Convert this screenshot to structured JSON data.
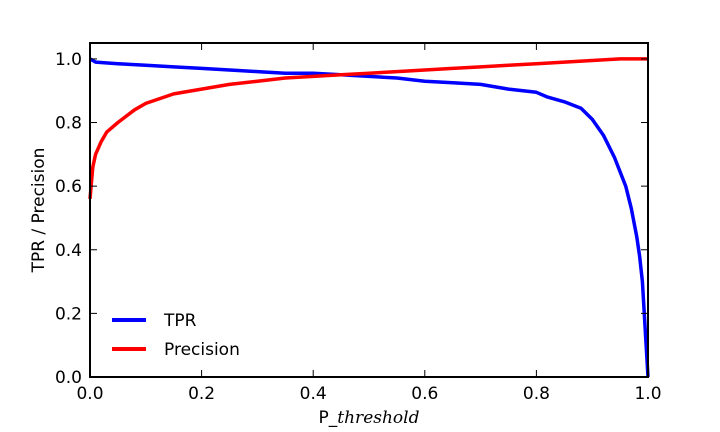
{
  "chart_data": {
    "type": "line",
    "title": "",
    "xlabel_prefix": "P_",
    "xlabel_italic": "threshold",
    "ylabel": "TPR / Precision",
    "xlim": [
      0.0,
      1.0
    ],
    "ylim": [
      0.0,
      1.05
    ],
    "x_ticks": [
      0.0,
      0.2,
      0.4,
      0.6,
      0.8,
      1.0
    ],
    "y_ticks": [
      0.0,
      0.2,
      0.4,
      0.6,
      0.8,
      1.0
    ],
    "x_tick_labels": [
      "0.0",
      "0.2",
      "0.4",
      "0.6",
      "0.8",
      "1.0"
    ],
    "y_tick_labels": [
      "0.0",
      "0.2",
      "0.4",
      "0.6",
      "0.8",
      "1.0"
    ],
    "grid": false,
    "legend_position": "lower-left",
    "series": [
      {
        "name": "TPR",
        "color": "#0000ff",
        "x": [
          0.0,
          0.01,
          0.05,
          0.1,
          0.15,
          0.2,
          0.25,
          0.3,
          0.35,
          0.4,
          0.45,
          0.5,
          0.55,
          0.6,
          0.65,
          0.7,
          0.75,
          0.8,
          0.82,
          0.85,
          0.88,
          0.9,
          0.92,
          0.94,
          0.96,
          0.97,
          0.98,
          0.985,
          0.99,
          0.995,
          1.0
        ],
        "y": [
          1.0,
          0.99,
          0.985,
          0.98,
          0.975,
          0.97,
          0.965,
          0.96,
          0.955,
          0.955,
          0.95,
          0.945,
          0.94,
          0.93,
          0.925,
          0.92,
          0.905,
          0.895,
          0.88,
          0.865,
          0.845,
          0.81,
          0.76,
          0.69,
          0.6,
          0.53,
          0.44,
          0.38,
          0.3,
          0.15,
          0.0
        ]
      },
      {
        "name": "Precision",
        "color": "#ff0000",
        "x": [
          0.0,
          0.005,
          0.01,
          0.02,
          0.03,
          0.05,
          0.08,
          0.1,
          0.15,
          0.2,
          0.25,
          0.3,
          0.35,
          0.4,
          0.45,
          0.5,
          0.55,
          0.6,
          0.65,
          0.7,
          0.75,
          0.8,
          0.85,
          0.9,
          0.95,
          1.0
        ],
        "y": [
          0.56,
          0.66,
          0.7,
          0.74,
          0.77,
          0.8,
          0.84,
          0.86,
          0.89,
          0.905,
          0.92,
          0.93,
          0.94,
          0.945,
          0.95,
          0.955,
          0.96,
          0.965,
          0.97,
          0.975,
          0.98,
          0.985,
          0.99,
          0.995,
          1.0,
          1.0
        ]
      }
    ]
  }
}
